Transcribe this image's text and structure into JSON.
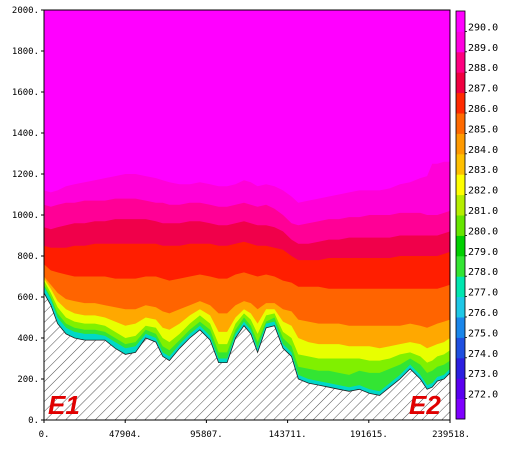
{
  "chart_data": {
    "type": "area",
    "x_ticks": [
      "0.",
      "47904.",
      "95807.",
      "143711.",
      "191615.",
      "239518."
    ],
    "y_ticks": [
      "0.",
      "200.",
      "400.",
      "600.",
      "800.",
      "1000.",
      "1200.",
      "1400.",
      "1600.",
      "1800.",
      "2000."
    ],
    "xlim": [
      0,
      239518
    ],
    "ylim": [
      0,
      2000
    ],
    "corner_labels": {
      "left": "E1",
      "right": "E2"
    },
    "colorbar": {
      "levels": [
        "272.0",
        "273.0",
        "274.0",
        "275.0",
        "276.0",
        "277.0",
        "278.0",
        "279.0",
        "280.0",
        "281.0",
        "282.0",
        "283.0",
        "284.0",
        "285.0",
        "286.0",
        "287.0",
        "288.0",
        "289.0",
        "290.0"
      ],
      "colors": [
        "#7f00ff",
        "#5a00f0",
        "#2c1fe0",
        "#1f4fe0",
        "#1a86ea",
        "#1ec7e6",
        "#00e6b0",
        "#33e533",
        "#00d000",
        "#66e600",
        "#b5ee00",
        "#ffff00",
        "#ffc000",
        "#ff9a00",
        "#ff6a00",
        "#ff2a00",
        "#f00040",
        "#ff0080",
        "#ff00e0",
        "#ff00ff"
      ]
    },
    "x": [
      0,
      4000,
      8000,
      13000,
      18000,
      24000,
      30000,
      36000,
      42000,
      48000,
      54000,
      60000,
      66000,
      70000,
      74000,
      80000,
      86000,
      92000,
      98000,
      103000,
      108000,
      113000,
      118000,
      122000,
      126000,
      131000,
      136000,
      141000,
      146000,
      150000,
      156000,
      162000,
      168000,
      174000,
      180000,
      186000,
      192000,
      198000,
      204000,
      210000,
      216000,
      222000,
      226000,
      229000,
      232000,
      236000,
      239518
    ],
    "terrain": [
      620,
      560,
      470,
      420,
      400,
      390,
      390,
      390,
      350,
      320,
      330,
      400,
      380,
      310,
      290,
      350,
      400,
      440,
      390,
      280,
      280,
      400,
      460,
      420,
      330,
      450,
      460,
      350,
      310,
      200,
      180,
      170,
      160,
      150,
      140,
      150,
      130,
      120,
      160,
      200,
      250,
      200,
      150,
      160,
      190,
      200,
      230
    ],
    "isentropes": [
      {
        "level": "272.0",
        "values": [
          650,
          590,
          500,
          450,
          430,
          420,
          420,
          410,
          380,
          350,
          360,
          420,
          400,
          330,
          310,
          370,
          420,
          460,
          410,
          300,
          300,
          420,
          480,
          440,
          350,
          470,
          480,
          370,
          330,
          220,
          200,
          190,
          180,
          170,
          160,
          170,
          150,
          140,
          180,
          220,
          270,
          220,
          170,
          180,
          210,
          220,
          250
        ]
      },
      {
        "level": "278.0",
        "values": [
          660,
          600,
          520,
          470,
          450,
          440,
          440,
          430,
          400,
          370,
          380,
          440,
          420,
          360,
          340,
          390,
          440,
          480,
          440,
          330,
          330,
          440,
          500,
          460,
          380,
          480,
          500,
          400,
          360,
          260,
          250,
          240,
          240,
          230,
          220,
          240,
          230,
          230,
          250,
          270,
          300,
          270,
          230,
          240,
          260,
          270,
          290
        ]
      },
      {
        "level": "280.0",
        "values": [
          680,
          620,
          550,
          500,
          480,
          470,
          470,
          460,
          430,
          400,
          410,
          460,
          450,
          400,
          380,
          420,
          470,
          510,
          470,
          370,
          370,
          470,
          520,
          490,
          420,
          510,
          520,
          430,
          400,
          320,
          310,
          300,
          300,
          300,
          300,
          300,
          290,
          290,
          300,
          320,
          330,
          310,
          280,
          290,
          310,
          320,
          340
        ]
      },
      {
        "level": "282.0",
        "values": [
          690,
          640,
          580,
          540,
          520,
          510,
          510,
          500,
          480,
          460,
          470,
          500,
          490,
          450,
          440,
          470,
          510,
          540,
          510,
          430,
          430,
          500,
          540,
          520,
          470,
          540,
          540,
          480,
          460,
          400,
          380,
          370,
          370,
          370,
          360,
          360,
          360,
          350,
          360,
          370,
          380,
          370,
          350,
          360,
          370,
          380,
          400
        ]
      },
      {
        "level": "284.0",
        "values": [
          700,
          660,
          620,
          590,
          580,
          570,
          570,
          560,
          550,
          540,
          540,
          560,
          550,
          530,
          520,
          540,
          560,
          580,
          560,
          520,
          520,
          560,
          580,
          570,
          540,
          570,
          570,
          540,
          530,
          490,
          480,
          470,
          470,
          470,
          460,
          460,
          460,
          460,
          460,
          460,
          470,
          460,
          450,
          460,
          470,
          480,
          490
        ]
      },
      {
        "level": "286.0",
        "values": [
          760,
          730,
          720,
          710,
          700,
          700,
          700,
          700,
          690,
          690,
          690,
          700,
          700,
          690,
          680,
          690,
          700,
          710,
          700,
          690,
          690,
          710,
          720,
          710,
          700,
          710,
          700,
          680,
          670,
          650,
          650,
          650,
          640,
          640,
          640,
          640,
          640,
          640,
          640,
          640,
          640,
          640,
          640,
          640,
          640,
          650,
          660
        ]
      },
      {
        "level": "287.0",
        "values": [
          850,
          840,
          840,
          840,
          850,
          850,
          860,
          860,
          860,
          860,
          860,
          860,
          860,
          850,
          850,
          850,
          860,
          860,
          860,
          850,
          850,
          860,
          870,
          860,
          850,
          850,
          840,
          830,
          800,
          780,
          780,
          780,
          790,
          790,
          790,
          790,
          790,
          790,
          790,
          800,
          800,
          800,
          800,
          800,
          800,
          810,
          820
        ]
      },
      {
        "level": "288.0",
        "values": [
          940,
          930,
          940,
          950,
          960,
          960,
          970,
          970,
          980,
          980,
          980,
          980,
          970,
          960,
          960,
          960,
          970,
          970,
          960,
          950,
          950,
          960,
          970,
          960,
          950,
          950,
          940,
          920,
          880,
          860,
          860,
          870,
          880,
          880,
          890,
          890,
          890,
          890,
          890,
          900,
          900,
          900,
          900,
          900,
          900,
          910,
          920
        ]
      },
      {
        "level": "289.0",
        "values": [
          1050,
          1040,
          1050,
          1060,
          1060,
          1070,
          1070,
          1070,
          1080,
          1080,
          1080,
          1070,
          1060,
          1060,
          1050,
          1050,
          1060,
          1060,
          1050,
          1040,
          1040,
          1050,
          1060,
          1050,
          1040,
          1050,
          1030,
          1000,
          960,
          950,
          960,
          970,
          980,
          980,
          990,
          990,
          1000,
          1000,
          1000,
          1010,
          1010,
          1010,
          1000,
          1000,
          1000,
          1010,
          1020
        ]
      },
      {
        "level": "290.0",
        "values": [
          1120,
          1110,
          1120,
          1140,
          1150,
          1160,
          1170,
          1180,
          1190,
          1200,
          1200,
          1190,
          1180,
          1170,
          1160,
          1150,
          1150,
          1160,
          1150,
          1140,
          1140,
          1150,
          1170,
          1160,
          1140,
          1150,
          1140,
          1120,
          1090,
          1060,
          1070,
          1080,
          1090,
          1100,
          1110,
          1120,
          1120,
          1120,
          1130,
          1150,
          1160,
          1180,
          1190,
          1250,
          1250,
          1260,
          1260
        ]
      }
    ]
  }
}
